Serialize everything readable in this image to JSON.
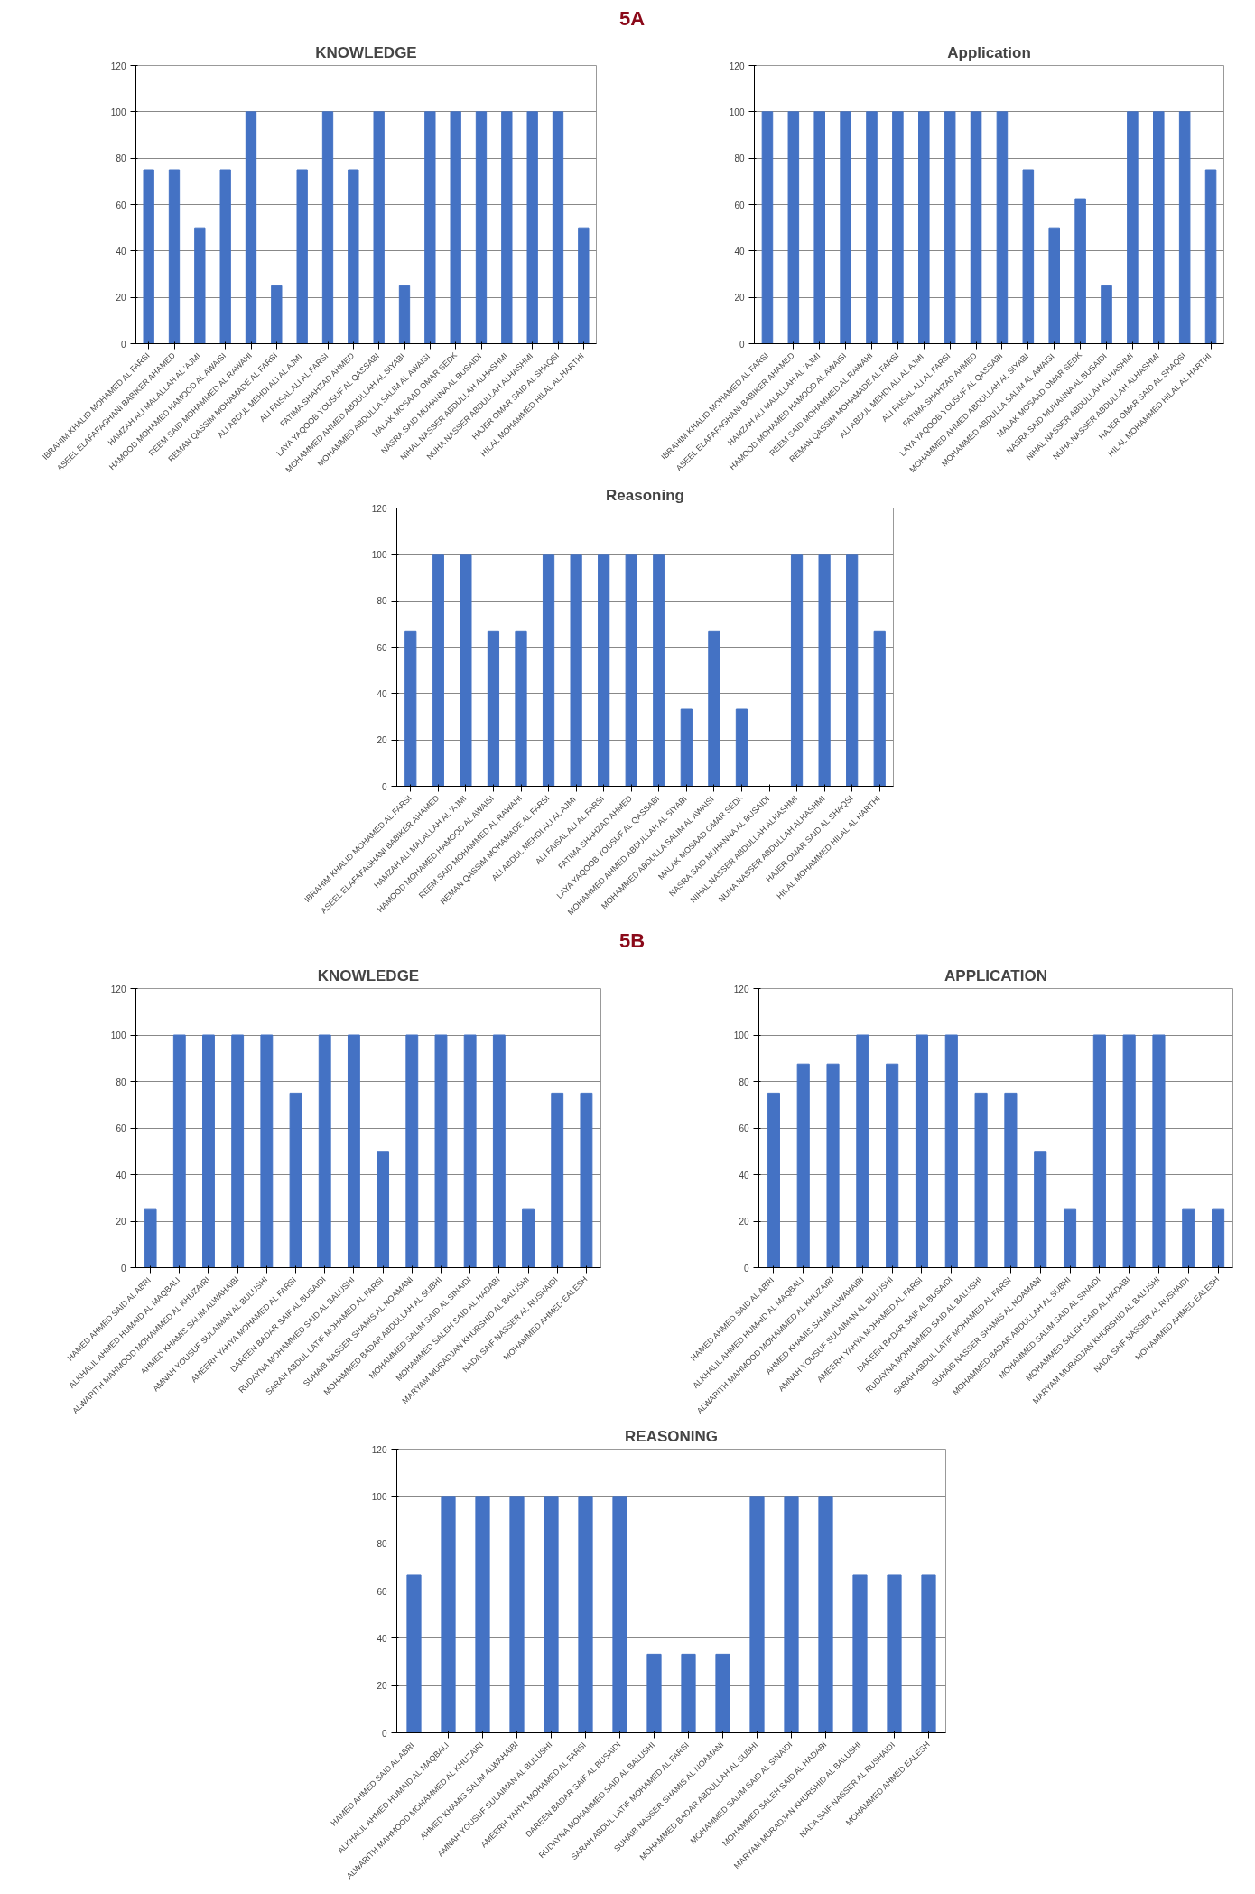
{
  "chart_data": [
    {
      "type": "bar",
      "annotations": [
        "5A"
      ],
      "title": "KNOWLEDGE",
      "categories": [
        "IBRAHIM KHALID MOHAMED AL FARSI",
        "ASEEL ELAFAFAGHANI BABIKER AHAMED",
        "HAMZAH ALI MALALLAH AL 'AJMI",
        "HAMOOD MOHAMED HAMOOD AL AWAISI",
        "REEM SAID MOHAMMED AL RAWAHI",
        "REMAN QASSIM MOHAMADE AL FARSI",
        "ALI ABDUL MEHDI ALI AL AJMI",
        "ALI FAISAL ALI AL FARSI",
        "FATIMA SHAHZAD AHMED",
        "LAYA YAQOOB YOUSUF AL QASSABI",
        "MOHAMMED AHMED ABDULLAH AL SIYABI",
        "MOHAMMED ABDULLA SALIM AL AWAISI",
        "MALAK MOSAAD OMAR SEDK",
        "NASRA SAID MUHANNA AL BUSAIDI",
        "NIHAL NASSER ABDULLAH ALHASHMI",
        "NUHA NASSER ABDULLAH ALHASHMI",
        "HAJER OMAR SAID AL SHAQSI",
        "HILAL MOHAMMED HILAL AL HARTHI"
      ],
      "values": [
        75,
        75,
        50,
        75,
        100,
        25,
        75,
        100,
        75,
        100,
        25,
        100,
        100,
        100,
        100,
        100,
        100,
        50
      ],
      "color": "#4472c4",
      "ylim": [
        0,
        120
      ],
      "yticks": [
        0,
        20,
        40,
        60,
        80,
        100,
        120
      ],
      "grid": "y"
    },
    {
      "type": "bar",
      "title": "Application",
      "categories": [
        "IBRAHIM KHALID MOHAMED AL FARSI",
        "ASEEL ELAFAFAGHANI BABIKER AHAMED",
        "HAMZAH ALI MALALLAH AL 'AJMI",
        "HAMOOD MOHAMED HAMOOD AL AWAISI",
        "REEM SAID MOHAMMED AL RAWAHI",
        "REMAN QASSIM MOHAMADE AL FARSI",
        "ALI ABDUL MEHDI ALI AL AJMI",
        "ALI FAISAL ALI AL FARSI",
        "FATIMA SHAHZAD AHMED",
        "LAYA YAQOOB YOUSUF AL QASSABI",
        "MOHAMMED AHMED ABDULLAH AL SIYABI",
        "MOHAMMED ABDULLA SALIM AL AWAISI",
        "MALAK MOSAAD OMAR SEDK",
        "NASRA SAID MUHANNA AL BUSAIDI",
        "NIHAL NASSER ABDULLAH ALHASHMI",
        "NUHA NASSER ABDULLAH ALHASHMI",
        "HAJER OMAR SAID AL SHAQSI",
        "HILAL MOHAMMED HILAL AL HARTHI"
      ],
      "values": [
        100,
        100,
        100,
        100,
        100,
        100,
        100,
        100,
        100,
        100,
        75,
        50,
        62.5,
        25,
        100,
        100,
        100,
        75
      ],
      "color": "#4472c4",
      "ylim": [
        0,
        120
      ],
      "yticks": [
        0,
        20,
        40,
        60,
        80,
        100,
        120
      ],
      "grid": "y"
    },
    {
      "type": "bar",
      "title": "Reasoning",
      "categories": [
        "IBRAHIM KHALID MOHAMED AL FARSI",
        "ASEEL ELAFAFAGHANI BABIKER AHAMED",
        "HAMZAH ALI MALALLAH AL 'AJMI",
        "HAMOOD MOHAMED HAMOOD AL AWAISI",
        "REEM SAID MOHAMMED AL RAWAHI",
        "REMAN QASSIM MOHAMADE AL FARSI",
        "ALI ABDUL MEHDI ALI AL AJMI",
        "ALI FAISAL ALI AL FARSI",
        "FATIMA SHAHZAD AHMED",
        "LAYA YAQOOB YOUSUF AL QASSABI",
        "MOHAMMED AHMED ABDULLAH AL SIYABI",
        "MOHAMMED ABDULLA SALIM AL AWAISI",
        "MALAK MOSAAD OMAR SEDK",
        "NASRA SAID MUHANNA AL BUSAIDI",
        "NIHAL NASSER ABDULLAH ALHASHMI",
        "NUHA NASSER ABDULLAH ALHASHMI",
        "HAJER OMAR SAID AL SHAQSI",
        "HILAL MOHAMMED HILAL AL HARTHI"
      ],
      "values": [
        66.7,
        100,
        100,
        66.7,
        66.7,
        100,
        100,
        100,
        100,
        100,
        33.3,
        66.7,
        33.3,
        0,
        100,
        100,
        100,
        66.7
      ],
      "color": "#4472c4",
      "ylim": [
        0,
        120
      ],
      "yticks": [
        0,
        20,
        40,
        60,
        80,
        100,
        120
      ],
      "grid": "y"
    },
    {
      "type": "bar",
      "annotations": [
        "5B"
      ],
      "title": "KNOWLEDGE",
      "categories": [
        "HAMED AHMED SAID AL ABRI",
        "ALKHALIL AHMED HUMAID AL MAQBALI",
        "ALWARITH MAHMOOD MOHAMMED AL KHUZAIRI",
        "AHMED KHAMIS SALIM ALWAHAIBI",
        "AMNAH YOUSUF SULAIMAN AL BULUSHI",
        "AMEERH YAHYA MOHAMED AL FARSI",
        "DAREEN BADAR SAIF AL BUSAIDI",
        "RUDAYNA MOHAMMED SAID AL BALUSHI",
        "SARAH ABDUL LATIF MOHAMED AL FARSI",
        "SUHAIB NASSER SHAMIS AL NOAMANI",
        "MOHAMMED BADAR ABDULLAH AL SUBHI",
        "MOHAMMED SALIM SAID AL SINAIDI",
        "MOHAMMED SALEH SAID AL HADABI",
        "MARYAM MURADJAN KHURSHID AL BALUSHI",
        "NADA SAIF NASSER AL RUSHAIDI",
        "MOHAMMED AHMED EALESH"
      ],
      "values": [
        25,
        100,
        100,
        100,
        100,
        75,
        100,
        100,
        50,
        100,
        100,
        100,
        100,
        25,
        75,
        75
      ],
      "color": "#4472c4",
      "ylim": [
        0,
        120
      ],
      "yticks": [
        0,
        20,
        40,
        60,
        80,
        100,
        120
      ],
      "grid": "y"
    },
    {
      "type": "bar",
      "title": "APPLICATION",
      "categories": [
        "HAMED AHMED SAID AL ABRI",
        "ALKHALIL AHMED HUMAID AL MAQBALI",
        "ALWARITH MAHMOOD MOHAMMED AL KHUZAIRI",
        "AHMED KHAMIS SALIM ALWAHAIBI",
        "AMNAH YOUSUF SULAIMAN AL BULUSHI",
        "AMEERH YAHYA MOHAMED AL FARSI",
        "DAREEN BADAR SAIF AL BUSAIDI",
        "RUDAYNA MOHAMMED SAID AL BALUSHI",
        "SARAH ABDUL LATIF MOHAMED AL FARSI",
        "SUHAIB NASSER SHAMIS AL NOAMANI",
        "MOHAMMED BADAR ABDULLAH AL SUBHI",
        "MOHAMMED SALIM SAID AL SINAIDI",
        "MOHAMMED SALEH SAID AL HADABI",
        "MARYAM MURADJAN KHURSHID AL BALUSHI",
        "NADA SAIF NASSER AL RUSHAIDI",
        "MOHAMMED AHMED EALESH"
      ],
      "values": [
        75,
        87.5,
        87.5,
        100,
        87.5,
        100,
        100,
        75,
        75,
        50,
        25,
        100,
        100,
        100,
        25,
        25
      ],
      "color": "#4472c4",
      "ylim": [
        0,
        120
      ],
      "yticks": [
        0,
        20,
        40,
        60,
        80,
        100,
        120
      ],
      "grid": "y"
    },
    {
      "type": "bar",
      "title": "REASONING",
      "categories": [
        "HAMED AHMED SAID AL ABRI",
        "ALKHALIL AHMED HUMAID AL MAQBALI",
        "ALWARITH MAHMOOD MOHAMMED AL KHUZAIRI",
        "AHMED KHAMIS SALIM ALWAHAIBI",
        "AMNAH YOUSUF SULAIMAN AL BULUSHI",
        "AMEERH YAHYA MOHAMED AL FARSI",
        "DAREEN BADAR SAIF AL BUSAIDI",
        "RUDAYNA MOHAMMED SAID AL BALUSHI",
        "SARAH ABDUL LATIF MOHAMED AL FARSI",
        "SUHAIB NASSER SHAMIS AL NOAMANI",
        "MOHAMMED BADAR ABDULLAH AL SUBHI",
        "MOHAMMED SALIM SAID AL SINAIDI",
        "MOHAMMED SALEH SAID AL HADABI",
        "MARYAM MURADJAN KHURSHID AL BALUSHI",
        "NADA SAIF NASSER AL RUSHAIDI",
        "MOHAMMED AHMED EALESH"
      ],
      "values": [
        66.7,
        100,
        100,
        100,
        100,
        100,
        100,
        33.3,
        33.3,
        33.3,
        100,
        100,
        100,
        66.7,
        66.7,
        66.7
      ],
      "color": "#4472c4",
      "ylim": [
        0,
        120
      ],
      "yticks": [
        0,
        20,
        40,
        60,
        80,
        100,
        120
      ],
      "grid": "y"
    }
  ]
}
